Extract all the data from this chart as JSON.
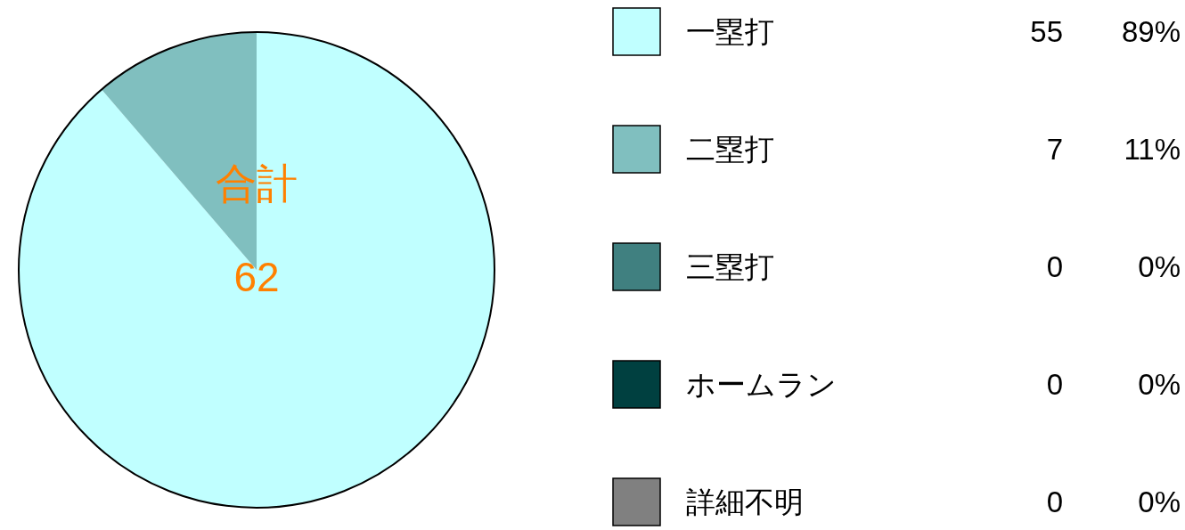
{
  "chart_data": {
    "type": "pie",
    "categories": [
      "一塁打",
      "二塁打",
      "三塁打",
      "ホームラン",
      "詳細不明"
    ],
    "values": [
      55,
      7,
      0,
      0,
      0
    ],
    "colors": [
      "#c0ffff",
      "#80bfbf",
      "#408080",
      "#004040",
      "#808080"
    ],
    "value_labels": [
      "55",
      "7",
      "0",
      "0",
      "0"
    ],
    "legend": "right",
    "annotations": [
      "合計",
      "62",
      {
        "text": "89%",
        "x": "一塁打"
      },
      {
        "text": "11%",
        "x": "二塁打"
      },
      {
        "text": "0%",
        "x": "三塁打"
      },
      {
        "text": "0%",
        "x": "ホームラン"
      },
      {
        "text": "0%",
        "x": "詳細不明"
      }
    ]
  }
}
